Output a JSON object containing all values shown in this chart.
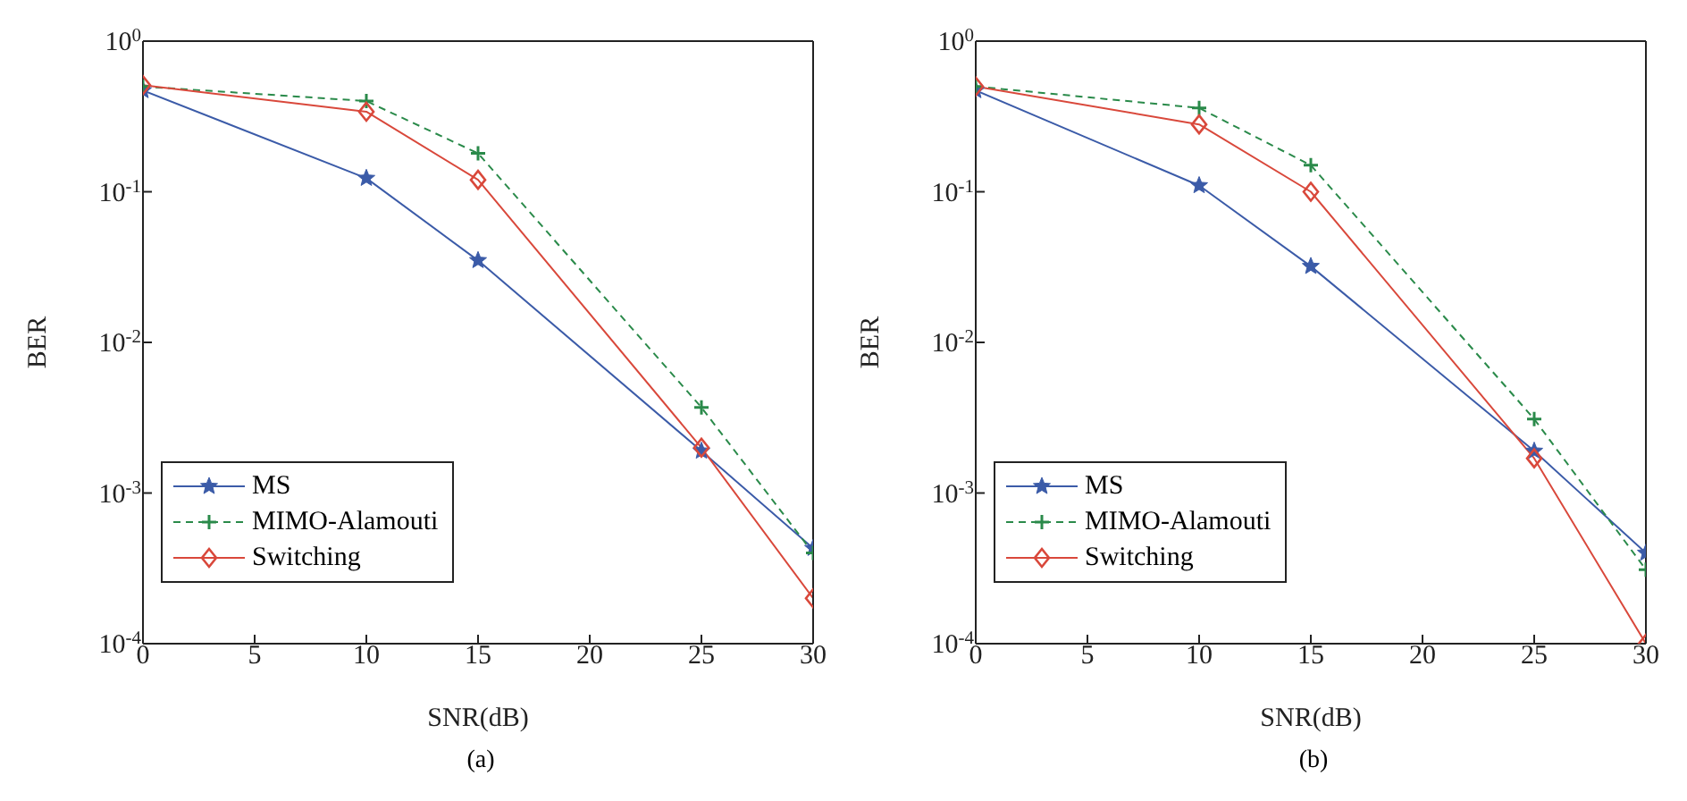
{
  "chart_data": [
    {
      "type": "line",
      "xlabel": "SNR(dB)",
      "ylabel": "BER",
      "annotations": [
        "(a)"
      ],
      "log": "y",
      "grid": false,
      "legend": "bottom left",
      "x": [
        0,
        10,
        15,
        25,
        30
      ],
      "xlim": [
        0,
        30
      ],
      "xticks": [
        0,
        5,
        10,
        15,
        20,
        25,
        30
      ],
      "ylim": [
        0.0001,
        1
      ],
      "yticks": [
        {
          "value": 1,
          "label": "10$^{0}$"
        },
        {
          "value": 0.1,
          "label": "10$^{-1}$"
        },
        {
          "value": 0.01,
          "label": "10$^{-2}$"
        },
        {
          "value": 0.001,
          "label": "10$^{-3}$"
        },
        {
          "value": 0.0001,
          "label": "10$^{-4}$"
        }
      ],
      "series": [
        {
          "name": "MS",
          "color": "#3b5ba8",
          "marker": "star",
          "line_style": "solid",
          "values": [
            0.47,
            0.123,
            0.035,
            0.0019,
            0.00043
          ]
        },
        {
          "name": "MIMO-Alamouti",
          "color": "#2a8a4a",
          "marker": "cross",
          "line_style": "dashed",
          "values": [
            0.5,
            0.4,
            0.18,
            0.0037,
            0.0004
          ]
        },
        {
          "name": "Switching",
          "color": "#d9483b",
          "marker": "diamond",
          "line_style": "solid",
          "values": [
            0.51,
            0.34,
            0.12,
            0.002,
            0.0002
          ]
        }
      ]
    },
    {
      "type": "line",
      "xlabel": "SNR(dB)",
      "ylabel": "BER",
      "annotations": [
        "(b)"
      ],
      "log": "y",
      "grid": false,
      "legend": "bottom left",
      "x": [
        0,
        10,
        15,
        25,
        30
      ],
      "xlim": [
        0,
        30
      ],
      "xticks": [
        0,
        5,
        10,
        15,
        20,
        25,
        30
      ],
      "ylim": [
        0.0001,
        1
      ],
      "yticks": [
        {
          "value": 1,
          "label": "10$^{0}$"
        },
        {
          "value": 0.1,
          "label": "10$^{-1}$"
        },
        {
          "value": 0.01,
          "label": "10$^{-2}$"
        },
        {
          "value": 0.001,
          "label": "10$^{-3}$"
        },
        {
          "value": 0.0001,
          "label": "10$^{-4}$"
        }
      ],
      "series": [
        {
          "name": "MS",
          "color": "#3b5ba8",
          "marker": "star",
          "line_style": "solid",
          "values": [
            0.47,
            0.11,
            0.032,
            0.0019,
            0.0004
          ]
        },
        {
          "name": "MIMO-Alamouti",
          "color": "#2a8a4a",
          "marker": "cross",
          "line_style": "dashed",
          "values": [
            0.5,
            0.36,
            0.15,
            0.0031,
            0.00031
          ]
        },
        {
          "name": "Switching",
          "color": "#d9483b",
          "marker": "diamond",
          "line_style": "solid",
          "values": [
            0.5,
            0.28,
            0.1,
            0.0017,
            0.0001
          ]
        }
      ]
    }
  ]
}
